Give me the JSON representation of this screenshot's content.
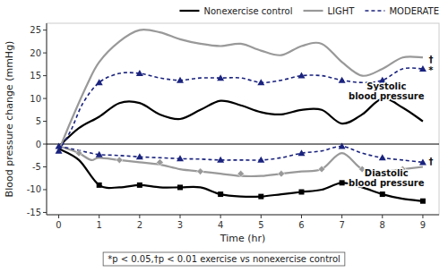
{
  "chart_data": {
    "type": "line",
    "xlabel": "Time (hr)",
    "ylabel": "Blood pressure change (mmHg)",
    "xlim": [
      -0.3,
      9.4
    ],
    "ylim": [
      -15.5,
      26.5
    ],
    "xticks": [
      0,
      1,
      2,
      3,
      4,
      5,
      6,
      7,
      8,
      9
    ],
    "yticks": [
      -15,
      -10,
      -5,
      0,
      5,
      10,
      15,
      20,
      25
    ],
    "grid": false,
    "legend": "upper right",
    "series": [
      {
        "name": "Nonexercise control",
        "type": "line",
        "color": "#000000",
        "line_style": "solid",
        "x": [
          0.0,
          0.5,
          1.0,
          1.5,
          2.0,
          2.5,
          3.0,
          3.5,
          4.0,
          4.5,
          5.0,
          5.5,
          6.0,
          6.5,
          7.0,
          7.5,
          8.0,
          8.5,
          9.0
        ],
        "values": [
          -0.5,
          3.5,
          6.0,
          9.0,
          9.0,
          6.5,
          5.5,
          7.5,
          9.5,
          8.5,
          7.0,
          6.5,
          7.5,
          7.5,
          4.5,
          6.5,
          10.0,
          8.0,
          5.0
        ]
      },
      {
        "name": "LIGHT",
        "type": "line",
        "color": "#999999",
        "line_style": "solid",
        "x": [
          0.0,
          0.3,
          0.7,
          1.0,
          1.5,
          2.0,
          2.5,
          3.0,
          3.5,
          4.0,
          4.5,
          5.0,
          5.5,
          6.0,
          6.5,
          7.0,
          7.5,
          8.0,
          8.5,
          9.0
        ],
        "values": [
          -1.5,
          5.0,
          13.0,
          18.0,
          22.5,
          25.0,
          24.5,
          23.0,
          22.0,
          21.5,
          22.0,
          20.5,
          19.5,
          21.5,
          22.0,
          18.0,
          15.0,
          16.5,
          19.0,
          19.0
        ]
      },
      {
        "name": "MODERATE",
        "type": "line",
        "color": "#1a237e",
        "line_style": "dashed",
        "x": [
          0.0,
          0.3,
          0.6,
          1.0,
          1.5,
          2.0,
          2.5,
          3.0,
          3.5,
          4.0,
          4.5,
          5.0,
          5.5,
          6.0,
          6.5,
          7.0,
          7.5,
          8.0,
          8.5,
          9.0
        ],
        "values": [
          -1.5,
          3.0,
          9.0,
          13.5,
          15.5,
          15.5,
          14.5,
          14.0,
          14.5,
          14.5,
          14.5,
          13.5,
          14.0,
          15.0,
          15.0,
          14.0,
          13.5,
          14.0,
          16.5,
          16.5
        ]
      },
      {
        "type": "scatter",
        "color": "#1a237e",
        "marker": "triangle",
        "x": [
          0.0,
          1.0,
          2.0,
          3.0,
          4.0,
          5.0,
          6.0,
          7.0,
          8.0,
          9.0
        ],
        "values": [
          -1.5,
          13.5,
          15.5,
          14.0,
          14.5,
          13.5,
          15.0,
          14.0,
          14.0,
          16.5
        ]
      },
      {
        "name": "Nonexercise control",
        "type": "line",
        "color": "#000000",
        "line_style": "solid",
        "x": [
          0.0,
          0.5,
          1.0,
          1.5,
          2.0,
          2.5,
          3.0,
          3.5,
          4.0,
          4.5,
          5.0,
          5.5,
          6.0,
          6.5,
          7.0,
          7.5,
          8.0,
          8.5,
          9.0
        ],
        "values": [
          -1.0,
          -3.5,
          -9.0,
          -9.5,
          -9.0,
          -9.5,
          -9.5,
          -9.5,
          -11.0,
          -11.5,
          -11.5,
          -11.0,
          -10.5,
          -10.0,
          -8.5,
          -9.5,
          -11.0,
          -12.0,
          -12.5
        ]
      },
      {
        "type": "scatter",
        "color": "#000000",
        "marker": "square",
        "x": [
          1.0,
          2.0,
          3.0,
          4.0,
          5.0,
          6.0,
          7.0,
          8.0,
          9.0
        ],
        "values": [
          -9.0,
          -9.0,
          -9.5,
          -11.0,
          -11.5,
          -10.5,
          -8.5,
          -11.0,
          -12.5
        ]
      },
      {
        "name": "LIGHT",
        "type": "line",
        "color": "#999999",
        "line_style": "solid",
        "x": [
          0.0,
          0.2,
          0.5,
          0.8,
          1.0,
          1.5,
          2.0,
          2.5,
          3.0,
          3.5,
          4.0,
          4.5,
          5.0,
          5.5,
          6.0,
          6.5,
          7.0,
          7.5,
          8.0,
          8.5,
          9.0
        ],
        "values": [
          -0.5,
          -1.0,
          -2.0,
          -3.5,
          -3.0,
          -3.5,
          -4.0,
          -4.5,
          -5.5,
          -6.0,
          -6.5,
          -7.0,
          -7.0,
          -6.5,
          -6.0,
          -5.5,
          -2.0,
          -5.5,
          -6.0,
          -5.5,
          -5.0
        ]
      },
      {
        "type": "scatter",
        "color": "#999999",
        "marker": "diamond",
        "x": [
          0.5,
          1.5,
          2.5,
          3.5,
          4.5,
          5.5,
          6.5,
          7.5,
          8.5
        ],
        "values": [
          -2.0,
          -3.5,
          -4.0,
          -6.0,
          -6.5,
          -6.5,
          -5.5,
          -5.5,
          -5.5
        ]
      },
      {
        "name": "MODERATE",
        "type": "line",
        "color": "#1a237e",
        "line_style": "dashed",
        "x": [
          0.0,
          0.3,
          0.7,
          1.0,
          1.5,
          2.0,
          2.5,
          3.0,
          3.5,
          4.0,
          4.5,
          5.0,
          5.5,
          6.0,
          6.5,
          7.0,
          7.5,
          8.0,
          8.5,
          9.0
        ],
        "values": [
          -0.5,
          -1.0,
          -1.8,
          -2.3,
          -2.5,
          -2.8,
          -3.0,
          -3.2,
          -3.3,
          -3.5,
          -3.5,
          -3.5,
          -3.0,
          -2.0,
          -1.5,
          -0.5,
          -2.0,
          -3.0,
          -3.5,
          -4.0
        ]
      },
      {
        "type": "scatter",
        "color": "#1a237e",
        "marker": "triangle",
        "x": [
          0.0,
          1.0,
          2.0,
          3.0,
          4.0,
          5.0,
          6.0,
          7.0,
          8.0,
          9.0
        ],
        "values": [
          -0.5,
          -2.3,
          -2.8,
          -3.2,
          -3.5,
          -3.5,
          -2.0,
          -0.5,
          -3.0,
          -4.0
        ]
      }
    ],
    "annotations": [
      {
        "text": "Systolic\nblood pressure",
        "x": 8.1,
        "y": 11.5
      },
      {
        "text": "Diastolic\nblood pressure",
        "x": 8.1,
        "y": -7.5
      },
      {
        "text": "†",
        "x": 9.2,
        "y": 18.5
      },
      {
        "text": "*",
        "x": 9.2,
        "y": 16.2
      },
      {
        "text": "†",
        "x": 9.2,
        "y": -3.8
      }
    ],
    "footnote": "*p < 0.05,†p < 0.01 exercise vs nonexercise control"
  }
}
